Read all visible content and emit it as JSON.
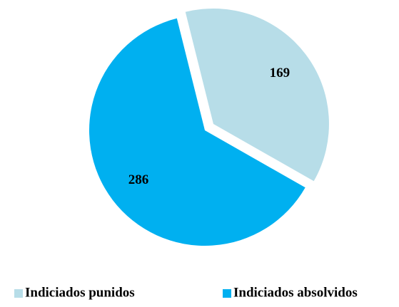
{
  "chart_data": {
    "type": "pie",
    "categories": [
      "Indiciados punidos",
      "Indiciados absolvidos"
    ],
    "values": [
      169,
      286
    ],
    "colors": [
      "#b7dde8",
      "#00b0f0"
    ],
    "legend": "bottom"
  }
}
